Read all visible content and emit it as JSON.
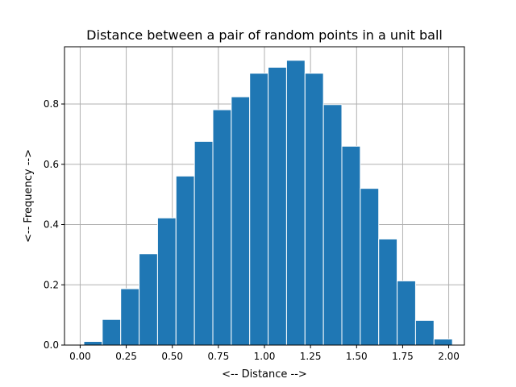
{
  "chart_data": {
    "type": "bar",
    "title": "Distance between a pair of random points in a unit ball",
    "xlabel": "<-- Distance -->",
    "ylabel": "<-- Frequency -->",
    "xlim": [
      -0.085,
      2.085
    ],
    "ylim": [
      0,
      0.99
    ],
    "xticks": [
      "0.00",
      "0.25",
      "0.50",
      "0.75",
      "1.00",
      "1.25",
      "1.50",
      "1.75",
      "2.00"
    ],
    "yticks": [
      "0.0",
      "0.2",
      "0.4",
      "0.6",
      "0.8"
    ],
    "grid": true,
    "bin_start": 0.02,
    "bin_width": 0.1,
    "values": [
      0.012,
      0.085,
      0.187,
      0.303,
      0.422,
      0.561,
      0.676,
      0.781,
      0.824,
      0.902,
      0.922,
      0.945,
      0.902,
      0.798,
      0.66,
      0.52,
      0.352,
      0.213,
      0.082,
      0.02
    ],
    "color": "#1f77b4"
  }
}
